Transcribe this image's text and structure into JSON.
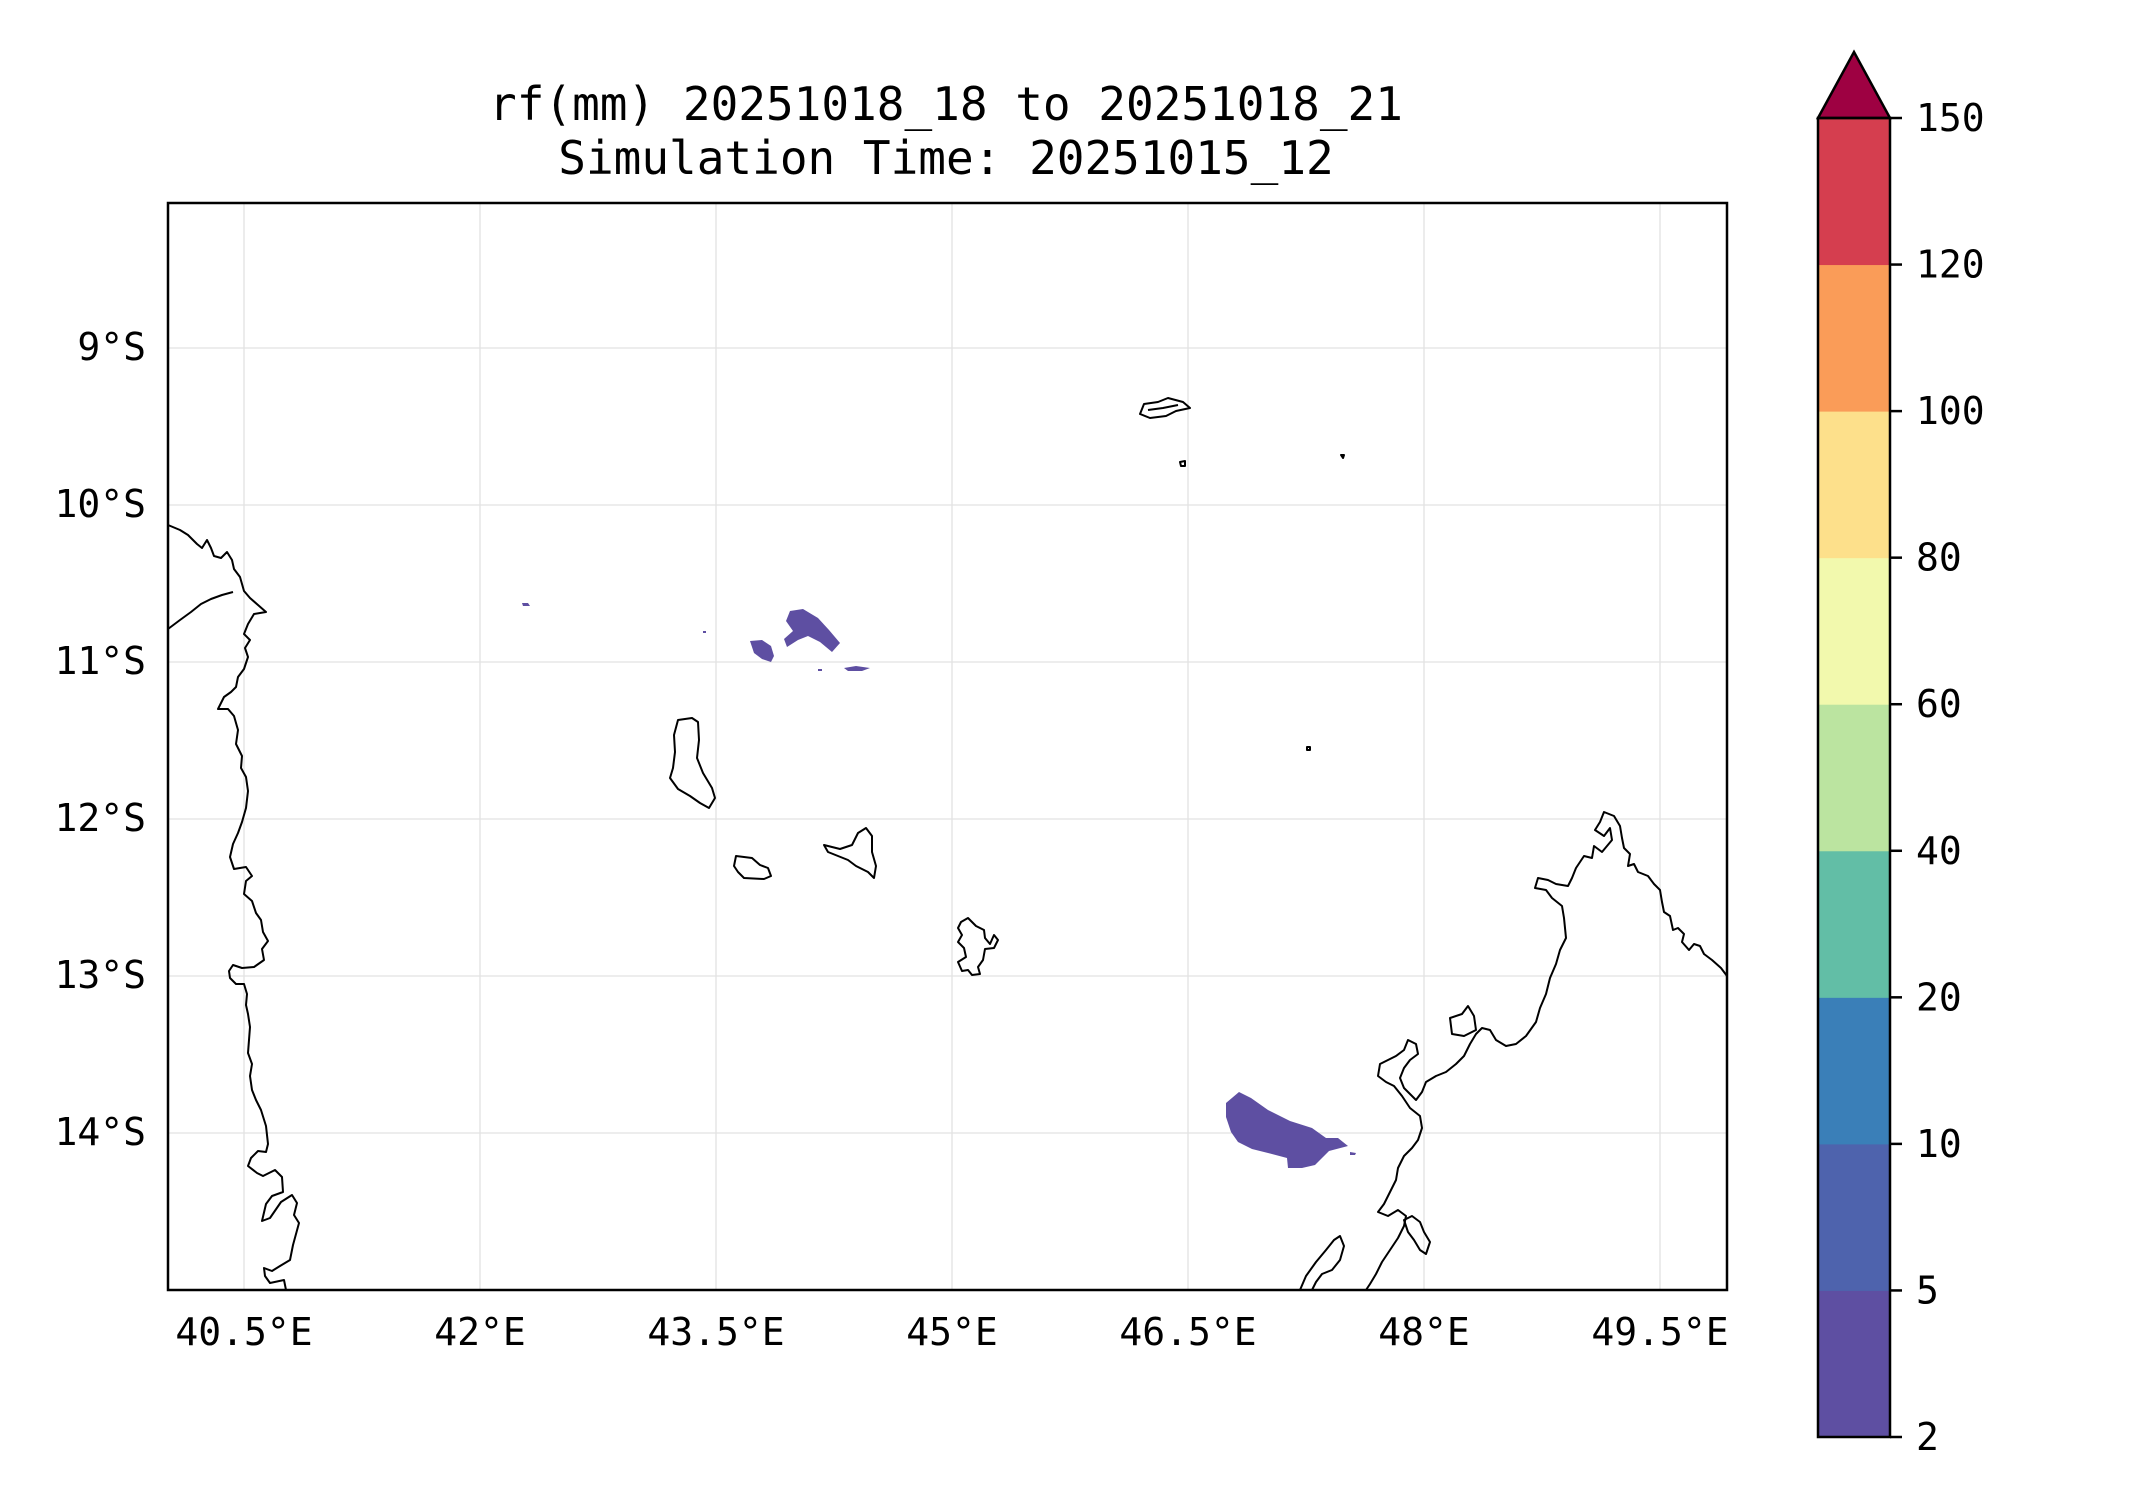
{
  "title": {
    "line1": "rf(mm) 20251018_18 to 20251018_21",
    "line2": "Simulation Time: 20251015_12"
  },
  "map": {
    "x_ticks": [
      "40.5°E",
      "42°E",
      "43.5°E",
      "45°E",
      "46.5°E",
      "48°E",
      "49.5°E"
    ],
    "y_ticks": [
      "9°S",
      "10°S",
      "11°S",
      "12°S",
      "13°S",
      "14°S"
    ],
    "gridlines": true,
    "coastline_color": "#000000"
  },
  "colorbar": {
    "levels": [
      "2",
      "5",
      "10",
      "20",
      "40",
      "60",
      "80",
      "100",
      "120",
      "150"
    ],
    "colors": [
      "#5e4fa2",
      "#4e63ad",
      "#3a7fb8",
      "#62bea6",
      "#bbe4a0",
      "#f2f9ad",
      "#fde08b",
      "#fa9c58",
      "#d53e4f"
    ],
    "extend_color": "#9e0142",
    "extend": "max"
  },
  "rain_color": "#5e4fa2"
}
